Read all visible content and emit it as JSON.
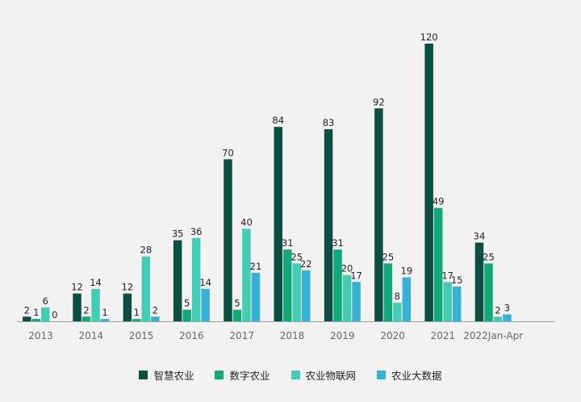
{
  "chart_data": {
    "type": "bar",
    "categories": [
      "2013",
      "2014",
      "2015",
      "2016",
      "2017",
      "2018",
      "2019",
      "2020",
      "2021",
      "2022Jan-Apr"
    ],
    "series": [
      {
        "name": "智慧农业",
        "color": "#0a4f3f",
        "values": [
          2,
          12,
          12,
          35,
          70,
          84,
          83,
          92,
          120,
          34
        ]
      },
      {
        "name": "数字农业",
        "color": "#11a97a",
        "values": [
          1,
          2,
          1,
          5,
          5,
          31,
          31,
          25,
          49,
          25
        ]
      },
      {
        "name": "农业物联网",
        "color": "#43cdb4",
        "values": [
          6,
          14,
          28,
          36,
          40,
          25,
          20,
          8,
          17,
          2
        ]
      },
      {
        "name": "农业大数据",
        "color": "#38b2d4",
        "values": [
          0,
          1,
          2,
          14,
          21,
          22,
          17,
          19,
          15,
          3
        ]
      }
    ],
    "ylim": [
      0,
      120
    ],
    "grid": false,
    "legend_position": "bottom-center",
    "data_labels": true
  }
}
